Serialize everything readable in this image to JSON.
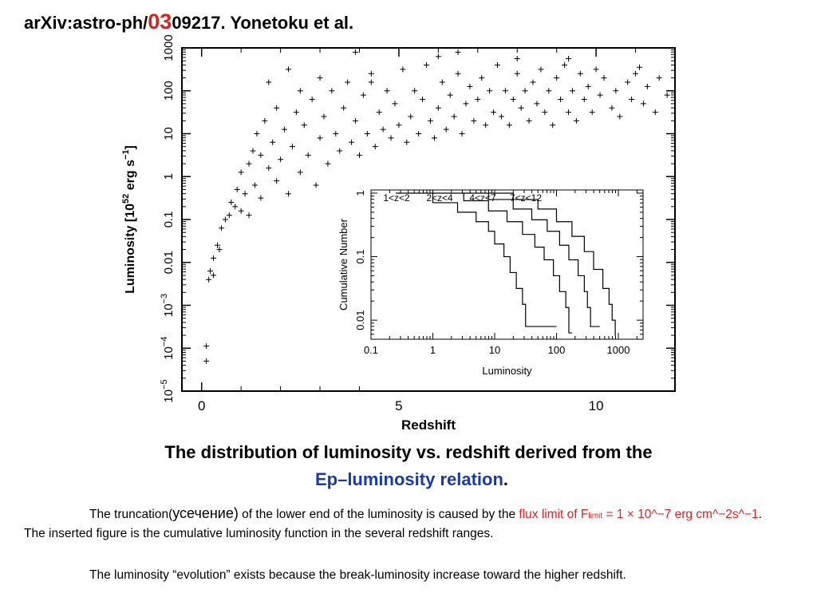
{
  "header": {
    "prefix": "arXiv:astro-ph/",
    "red": "03",
    "suffix": "09217. Yonetoku et al."
  },
  "caption": {
    "line1": "The distribution of luminosity vs. redshift derived from the",
    "line2_blue": "Ep–luminosity relation",
    "line2_end": "."
  },
  "paragraph1": {
    "t1": "The truncation(",
    "ru": "усечение)",
    "t2": " of the lower end of the luminosity is caused by the ",
    "red1": "flux limit of F",
    "sub": "limit",
    "red2": " = 1 × 10^−7 erg cm^−2s^−1",
    "t3": ". The inserted figure is the cumulative luminosity function in the several redshift ranges."
  },
  "paragraph2": "The luminosity “evolution” exists because the break-luminosity increase toward the higher redshift.",
  "chart_data": [
    {
      "type": "scatter",
      "xlabel": "Redshift",
      "ylabel": "Luminosity [10^52 erg s^-1]",
      "ylabel_main": "Luminosity  [10",
      "ylabel_exp": "52",
      "ylabel_unit": " erg s",
      "ylabel_unit_exp": "−1",
      "ylabel_close": "]",
      "xlim": [
        -0.5,
        12
      ],
      "ylim_log10": [
        -5,
        3
      ],
      "log_y": true,
      "x_ticks": [
        {
          "v": 0,
          "label": "0"
        },
        {
          "v": 5,
          "label": "5"
        },
        {
          "v": 10,
          "label": "10"
        }
      ],
      "y_ticks": [
        {
          "exp": -5,
          "base": "10",
          "sup": "−5"
        },
        {
          "exp": -4,
          "base": "10",
          "sup": "−4"
        },
        {
          "exp": -3,
          "base": "10",
          "sup": "−3"
        },
        {
          "exp": -2,
          "label": "0.01"
        },
        {
          "exp": -1,
          "label": "0.1"
        },
        {
          "exp": 0,
          "label": "1"
        },
        {
          "exp": 1,
          "label": "10"
        },
        {
          "exp": 2,
          "label": "100"
        },
        {
          "exp": 3,
          "label": "1000"
        }
      ],
      "marker": "+",
      "points": [
        [
          0.12,
          -4.3
        ],
        [
          0.12,
          -3.95
        ],
        [
          0.18,
          -2.4
        ],
        [
          0.22,
          -2.2
        ],
        [
          0.3,
          -2.3
        ],
        [
          0.3,
          -1.9
        ],
        [
          0.4,
          -1.6
        ],
        [
          0.45,
          -1.7
        ],
        [
          0.5,
          -1.2
        ],
        [
          0.6,
          -1.0
        ],
        [
          0.7,
          -0.9
        ],
        [
          0.75,
          -0.6
        ],
        [
          0.85,
          -0.7
        ],
        [
          0.9,
          -0.3
        ],
        [
          1.0,
          -0.8
        ],
        [
          1.0,
          0.1
        ],
        [
          1.1,
          -0.4
        ],
        [
          1.2,
          0.3
        ],
        [
          1.2,
          -0.9
        ],
        [
          1.3,
          0.6
        ],
        [
          1.35,
          -0.2
        ],
        [
          1.4,
          1.0
        ],
        [
          1.5,
          0.5
        ],
        [
          1.5,
          -0.5
        ],
        [
          1.6,
          1.3
        ],
        [
          1.7,
          0.2
        ],
        [
          1.7,
          2.2
        ],
        [
          1.8,
          0.8
        ],
        [
          1.9,
          -0.1
        ],
        [
          1.9,
          1.6
        ],
        [
          2.0,
          0.4
        ],
        [
          2.1,
          1.1
        ],
        [
          2.2,
          2.5
        ],
        [
          2.2,
          -0.4
        ],
        [
          2.3,
          0.7
        ],
        [
          2.4,
          1.5
        ],
        [
          2.5,
          0.1
        ],
        [
          2.5,
          2.0
        ],
        [
          2.6,
          1.2
        ],
        [
          2.7,
          0.5
        ],
        [
          2.8,
          1.8
        ],
        [
          2.9,
          -0.2
        ],
        [
          3.0,
          0.9
        ],
        [
          3.0,
          2.3
        ],
        [
          3.1,
          1.4
        ],
        [
          3.2,
          0.3
        ],
        [
          3.3,
          2.0
        ],
        [
          3.4,
          1.0
        ],
        [
          3.5,
          0.6
        ],
        [
          3.6,
          1.6
        ],
        [
          3.7,
          2.2
        ],
        [
          3.8,
          0.8
        ],
        [
          3.9,
          1.3
        ],
        [
          4.0,
          0.5
        ],
        [
          4.1,
          1.9
        ],
        [
          4.2,
          1.0
        ],
        [
          4.3,
          2.4
        ],
        [
          4.4,
          0.7
        ],
        [
          4.5,
          1.5
        ],
        [
          4.6,
          1.1
        ],
        [
          4.7,
          2.0
        ],
        [
          4.8,
          0.9
        ],
        [
          4.9,
          1.7
        ],
        [
          5.0,
          1.2
        ],
        [
          5.1,
          2.5
        ],
        [
          5.2,
          0.8
        ],
        [
          5.3,
          1.4
        ],
        [
          5.4,
          2.0
        ],
        [
          5.5,
          1.0
        ],
        [
          5.6,
          1.8
        ],
        [
          5.7,
          2.6
        ],
        [
          5.8,
          1.3
        ],
        [
          5.9,
          0.9
        ],
        [
          6.0,
          1.6
        ],
        [
          6.1,
          2.2
        ],
        [
          6.2,
          1.1
        ],
        [
          6.3,
          1.9
        ],
        [
          6.4,
          1.4
        ],
        [
          6.5,
          2.4
        ],
        [
          6.6,
          1.0
        ],
        [
          6.7,
          1.7
        ],
        [
          6.8,
          2.1
        ],
        [
          6.9,
          1.3
        ],
        [
          7.0,
          1.8
        ],
        [
          7.1,
          2.3
        ],
        [
          7.2,
          1.2
        ],
        [
          7.3,
          2.0
        ],
        [
          7.4,
          1.5
        ],
        [
          7.5,
          2.6
        ],
        [
          7.6,
          1.4
        ],
        [
          7.7,
          2.0
        ],
        [
          7.8,
          1.2
        ],
        [
          7.9,
          1.8
        ],
        [
          8.0,
          2.4
        ],
        [
          8.1,
          1.6
        ],
        [
          8.2,
          2.0
        ],
        [
          8.3,
          1.3
        ],
        [
          8.4,
          2.2
        ],
        [
          8.5,
          1.7
        ],
        [
          8.6,
          2.5
        ],
        [
          8.7,
          1.5
        ],
        [
          8.8,
          2.0
        ],
        [
          8.9,
          1.2
        ],
        [
          9.0,
          2.3
        ],
        [
          9.1,
          1.8
        ],
        [
          9.2,
          2.6
        ],
        [
          9.3,
          1.5
        ],
        [
          9.4,
          2.0
        ],
        [
          9.5,
          1.3
        ],
        [
          9.6,
          2.4
        ],
        [
          9.7,
          1.8
        ],
        [
          9.8,
          2.1
        ],
        [
          9.9,
          1.5
        ],
        [
          10.0,
          2.5
        ],
        [
          10.1,
          1.9
        ],
        [
          10.2,
          2.3
        ],
        [
          10.4,
          1.6
        ],
        [
          10.5,
          2.0
        ],
        [
          10.6,
          1.4
        ],
        [
          10.8,
          2.2
        ],
        [
          10.9,
          1.8
        ],
        [
          11.0,
          2.4
        ],
        [
          11.2,
          1.7
        ],
        [
          11.3,
          2.1
        ],
        [
          11.5,
          1.5
        ],
        [
          11.6,
          2.3
        ],
        [
          11.8,
          1.9
        ],
        [
          3.9,
          2.9
        ],
        [
          4.3,
          2.2
        ],
        [
          6.0,
          2.8
        ],
        [
          6.5,
          2.9
        ],
        [
          8.0,
          2.75
        ],
        [
          9.3,
          2.75
        ],
        [
          11.1,
          2.55
        ]
      ]
    },
    {
      "type": "line",
      "xlabel": "Luminosity",
      "ylabel": "Cumulative  Number",
      "log_x": true,
      "log_y": true,
      "xlim_log10": [
        -1,
        3.4
      ],
      "ylim_log10": [
        -2.3,
        0.05
      ],
      "x_ticks": [
        {
          "exp": -1,
          "label": "0.1"
        },
        {
          "exp": 0,
          "label": "1"
        },
        {
          "exp": 1,
          "label": "10"
        },
        {
          "exp": 2,
          "label": "100"
        },
        {
          "exp": 3,
          "label": "1000"
        }
      ],
      "y_ticks": [
        {
          "exp": -2,
          "label": "0.01"
        },
        {
          "exp": -1,
          "label": "0.1"
        },
        {
          "exp": 0,
          "label": "1"
        }
      ],
      "series": [
        {
          "name": "1<z<2",
          "points": [
            [
              -0.6,
              0
            ],
            [
              0,
              -0.15
            ],
            [
              0.4,
              -0.3
            ],
            [
              0.7,
              -0.45
            ],
            [
              0.9,
              -0.6
            ],
            [
              1.0,
              -0.8
            ],
            [
              1.15,
              -1.0
            ],
            [
              1.25,
              -1.25
            ],
            [
              1.35,
              -1.5
            ],
            [
              1.45,
              -1.75
            ],
            [
              1.5,
              -2.0
            ],
            [
              1.5,
              -2.1
            ],
            [
              1.9,
              -2.1
            ],
            [
              2.0,
              -2.1
            ]
          ]
        },
        {
          "name": "2<z<4",
          "points": [
            [
              0.0,
              0
            ],
            [
              0.5,
              -0.12
            ],
            [
              0.9,
              -0.28
            ],
            [
              1.2,
              -0.45
            ],
            [
              1.45,
              -0.65
            ],
            [
              1.65,
              -0.85
            ],
            [
              1.8,
              -1.05
            ],
            [
              1.95,
              -1.3
            ],
            [
              2.05,
              -1.55
            ],
            [
              2.15,
              -1.8
            ],
            [
              2.2,
              -2.0
            ],
            [
              2.2,
              -2.2
            ],
            [
              2.25,
              -2.2
            ]
          ]
        },
        {
          "name": "4<z<7",
          "points": [
            [
              0.5,
              0
            ],
            [
              0.9,
              -0.1
            ],
            [
              1.3,
              -0.25
            ],
            [
              1.6,
              -0.42
            ],
            [
              1.85,
              -0.6
            ],
            [
              2.05,
              -0.82
            ],
            [
              2.2,
              -1.05
            ],
            [
              2.35,
              -1.3
            ],
            [
              2.45,
              -1.55
            ],
            [
              2.5,
              -1.8
            ],
            [
              2.55,
              -2.1
            ],
            [
              2.7,
              -2.1
            ]
          ]
        },
        {
          "name": "7<z<12",
          "points": [
            [
              0.9,
              0
            ],
            [
              1.3,
              -0.1
            ],
            [
              1.7,
              -0.25
            ],
            [
              2.0,
              -0.45
            ],
            [
              2.25,
              -0.68
            ],
            [
              2.45,
              -0.92
            ],
            [
              2.6,
              -1.2
            ],
            [
              2.75,
              -1.5
            ],
            [
              2.85,
              -1.75
            ],
            [
              2.9,
              -2.0
            ],
            [
              2.95,
              -2.25
            ]
          ]
        }
      ]
    }
  ]
}
